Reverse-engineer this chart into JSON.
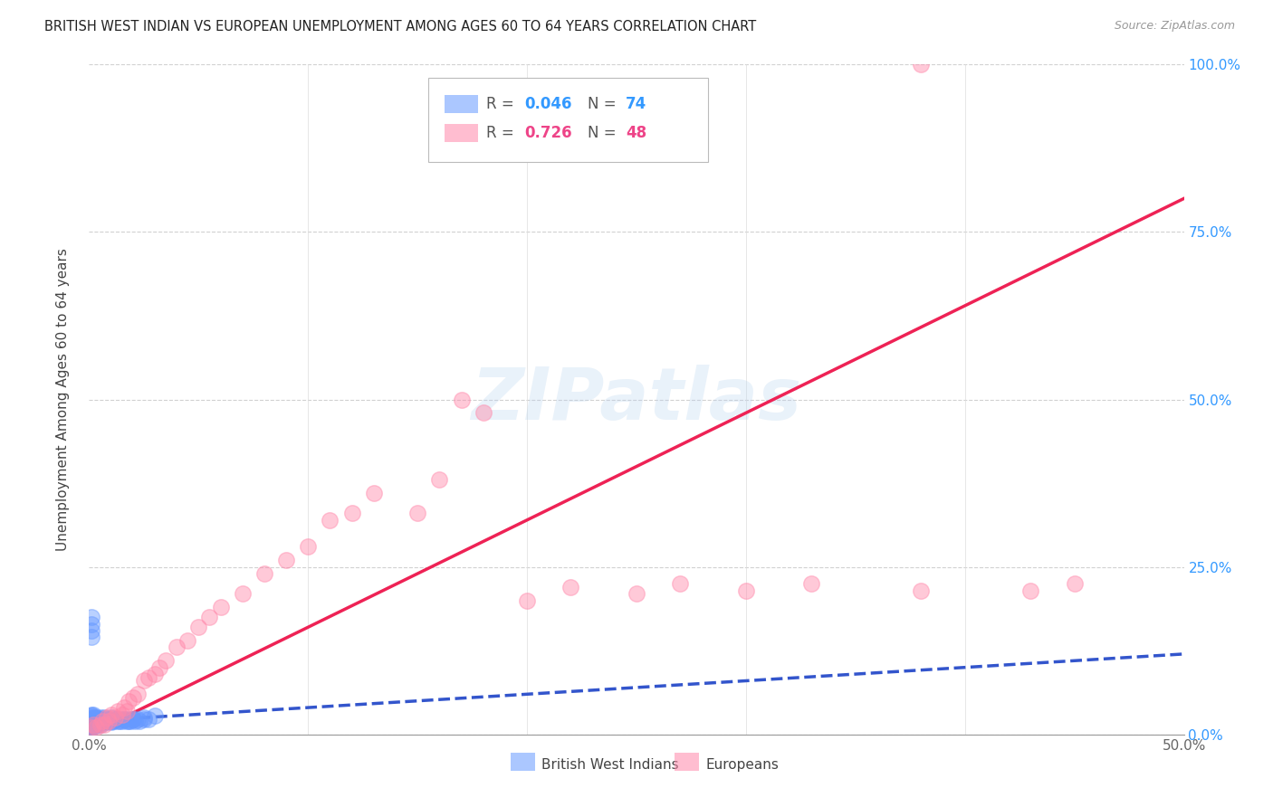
{
  "title": "BRITISH WEST INDIAN VS EUROPEAN UNEMPLOYMENT AMONG AGES 60 TO 64 YEARS CORRELATION CHART",
  "source": "Source: ZipAtlas.com",
  "ylabel": "Unemployment Among Ages 60 to 64 years",
  "xlim": [
    0,
    0.5
  ],
  "ylim": [
    0,
    1.0
  ],
  "xticks": [
    0,
    0.1,
    0.2,
    0.3,
    0.4,
    0.5
  ],
  "xticklabels_show": [
    "0.0%",
    "",
    "",
    "",
    "",
    "50.0%"
  ],
  "yticks": [
    0,
    0.25,
    0.5,
    0.75,
    1.0
  ],
  "yticklabels_right": [
    "0.0%",
    "25.0%",
    "50.0%",
    "75.0%",
    "100.0%"
  ],
  "legend_label1": "British West Indians",
  "legend_label2": "Europeans",
  "r1": 0.046,
  "n1": 74,
  "r2": 0.726,
  "n2": 48,
  "color1": "#6699ff",
  "color2": "#ff88aa",
  "trendline1_color": "#3355cc",
  "trendline2_color": "#ee2255",
  "background_color": "#ffffff",
  "watermark": "ZIPatlas",
  "bwi_x": [
    0.001,
    0.001,
    0.001,
    0.001,
    0.001,
    0.001,
    0.001,
    0.001,
    0.001,
    0.002,
    0.002,
    0.002,
    0.002,
    0.002,
    0.002,
    0.003,
    0.003,
    0.003,
    0.003,
    0.004,
    0.004,
    0.004,
    0.005,
    0.005,
    0.005,
    0.006,
    0.006,
    0.007,
    0.007,
    0.008,
    0.008,
    0.009,
    0.009,
    0.01,
    0.01,
    0.011,
    0.012,
    0.013,
    0.014,
    0.015,
    0.016,
    0.017,
    0.018,
    0.019,
    0.02,
    0.021,
    0.022,
    0.023,
    0.025,
    0.027,
    0.001,
    0.001,
    0.002,
    0.002,
    0.003,
    0.003,
    0.004,
    0.005,
    0.006,
    0.007,
    0.008,
    0.009,
    0.01,
    0.012,
    0.014,
    0.016,
    0.018,
    0.02,
    0.025,
    0.03,
    0.001,
    0.001,
    0.001,
    0.001
  ],
  "bwi_y": [
    0.02,
    0.025,
    0.03,
    0.015,
    0.01,
    0.018,
    0.022,
    0.012,
    0.028,
    0.02,
    0.015,
    0.025,
    0.018,
    0.03,
    0.012,
    0.02,
    0.025,
    0.015,
    0.018,
    0.022,
    0.018,
    0.015,
    0.02,
    0.025,
    0.015,
    0.022,
    0.018,
    0.02,
    0.025,
    0.02,
    0.018,
    0.022,
    0.02,
    0.018,
    0.025,
    0.02,
    0.022,
    0.02,
    0.022,
    0.02,
    0.022,
    0.02,
    0.022,
    0.02,
    0.022,
    0.02,
    0.022,
    0.02,
    0.022,
    0.022,
    0.02,
    0.015,
    0.02,
    0.018,
    0.022,
    0.015,
    0.02,
    0.022,
    0.02,
    0.022,
    0.02,
    0.022,
    0.02,
    0.022,
    0.02,
    0.022,
    0.02,
    0.022,
    0.025,
    0.028,
    0.175,
    0.165,
    0.155,
    0.145
  ],
  "eur_x": [
    0.001,
    0.002,
    0.003,
    0.005,
    0.006,
    0.007,
    0.008,
    0.009,
    0.01,
    0.012,
    0.013,
    0.015,
    0.016,
    0.017,
    0.018,
    0.02,
    0.022,
    0.025,
    0.027,
    0.03,
    0.032,
    0.035,
    0.04,
    0.045,
    0.05,
    0.055,
    0.06,
    0.07,
    0.08,
    0.09,
    0.1,
    0.11,
    0.12,
    0.13,
    0.15,
    0.16,
    0.17,
    0.18,
    0.2,
    0.22,
    0.25,
    0.27,
    0.3,
    0.33,
    0.38,
    0.43,
    0.45,
    0.38
  ],
  "eur_y": [
    0.01,
    0.015,
    0.01,
    0.015,
    0.02,
    0.015,
    0.025,
    0.02,
    0.03,
    0.025,
    0.035,
    0.03,
    0.04,
    0.035,
    0.05,
    0.055,
    0.06,
    0.08,
    0.085,
    0.09,
    0.1,
    0.11,
    0.13,
    0.14,
    0.16,
    0.175,
    0.19,
    0.21,
    0.24,
    0.26,
    0.28,
    0.32,
    0.33,
    0.36,
    0.33,
    0.38,
    0.5,
    0.48,
    0.2,
    0.22,
    0.21,
    0.225,
    0.215,
    0.225,
    0.215,
    0.215,
    0.225,
    1.0
  ],
  "trendline1_x": [
    0.0,
    0.5
  ],
  "trendline1_y": [
    0.02,
    0.12
  ],
  "trendline2_x": [
    0.0,
    0.5
  ],
  "trendline2_y": [
    0.0,
    0.8
  ]
}
